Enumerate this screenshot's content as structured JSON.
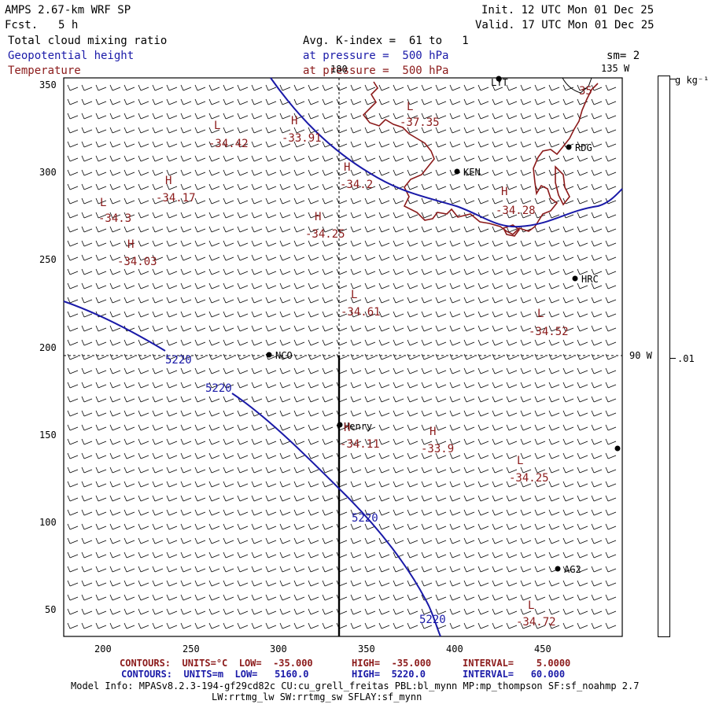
{
  "header": {
    "model": "AMPS 2.67-km WRF SP",
    "fcst_label": "Fcst.",
    "fcst_value": "5 h",
    "init": "Init. 12 UTC Mon 01 Dec 25",
    "valid": "Valid. 17 UTC Mon 01 Dec 25",
    "field1": "Total cloud mixing ratio",
    "field2": "Geopotential height",
    "field3": "Temperature",
    "avg": "Avg. K-index =  61 to   1",
    "pres1": "at pressure =  500 hPa",
    "pres2": "at pressure =  500 hPa",
    "sm": "sm= 2"
  },
  "map": {
    "lon_label_top": "180",
    "lon_label_135": "135 W",
    "lon_label_90": "90 W",
    "x_ticks": [
      "200",
      "250",
      "300",
      "350",
      "400",
      "450"
    ],
    "y_ticks": [
      "350",
      "300",
      "250",
      "200",
      "150",
      "100",
      "50"
    ],
    "stations": [
      {
        "name": "LYT"
      },
      {
        "name": "RDG"
      },
      {
        "name": "KEN"
      },
      {
        "name": "HRC"
      },
      {
        "name": "NCO"
      },
      {
        "name": "Henry"
      },
      {
        "name": "AG2"
      },
      {
        "name": ""
      }
    ],
    "extrema": [
      {
        "hl": "L",
        "val": "-34.42"
      },
      {
        "hl": "H",
        "val": "-33.91"
      },
      {
        "hl": "L",
        "val": "-37.35"
      },
      {
        "hl": "H",
        "val": "-34.17"
      },
      {
        "hl": "H",
        "val": "-34.2"
      },
      {
        "hl": "L",
        "val": "-34.3"
      },
      {
        "hl": "H",
        "val": "-34.25"
      },
      {
        "hl": "H",
        "val": "-34.28"
      },
      {
        "hl": "H",
        "val": "-34.03"
      },
      {
        "hl": "L",
        "val": "-34.61"
      },
      {
        "hl": "L",
        "val": "-34.52"
      },
      {
        "hl": "H",
        "val": "-34.11"
      },
      {
        "hl": "H",
        "val": "-33.9"
      },
      {
        "hl": "L",
        "val": "-34.25"
      },
      {
        "hl": "L",
        "val": "-34.72"
      }
    ],
    "partial_label": "35",
    "height_label": "5220",
    "colors": {
      "height": "#1a1aa8",
      "temp": "#8b1a1a"
    }
  },
  "colorbar": {
    "unit": "g kg⁻¹",
    "tick": ".01"
  },
  "footer": {
    "row1_a": "CONTOURS:  UNITS=°C  LOW=  -35.000",
    "row1_b": "HIGH=  -35.000",
    "row1_c": "INTERVAL=    5.0000",
    "row2_a": "CONTOURS:  UNITS=m  LOW=   5160.0",
    "row2_b": "HIGH=  5220.0",
    "row2_c": "INTERVAL=   60.000",
    "model_info": "Model Info: MPASv8.2.3-194-gf29cd82c CU:cu_grell_freitas PBL:bl_mynn MP:mp_thompson SF:sf_noahmp 2.7",
    "model_info2": "LW:rrtmg_lw SW:rrtmg_sw SFLAY:sf_mynn"
  }
}
